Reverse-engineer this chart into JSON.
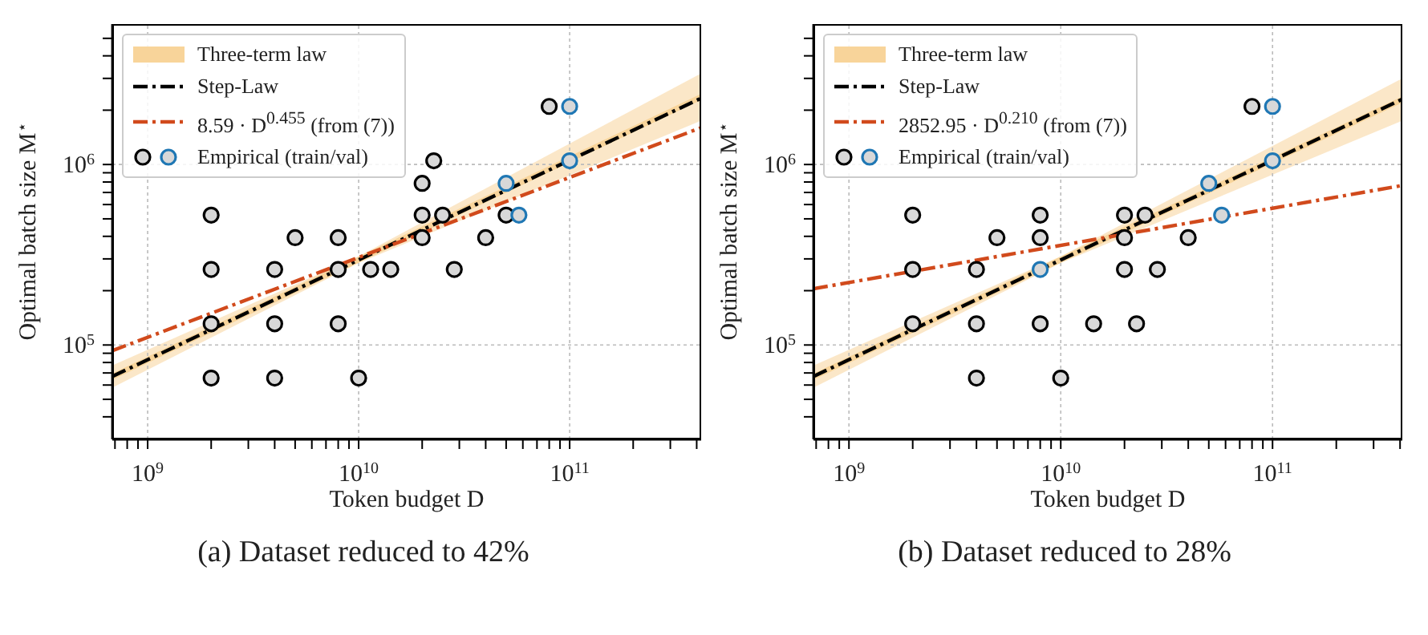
{
  "chart_data": [
    {
      "type": "scatter",
      "title": "(a) Dataset reduced to 42%",
      "xlabel": "Token budget D",
      "ylabel": "Optimal batch size M$^{⋆}$",
      "log": "xy",
      "grid": true,
      "legend": "top left",
      "xlim": [
        680000000.0,
        420000000000.0
      ],
      "ylim": [
        30000.0,
        6000000.0
      ],
      "xticks": [
        {
          "value": 700000000.0,
          "label": null
        },
        {
          "value": 800000000.0,
          "label": null
        },
        {
          "value": 900000000.0,
          "label": null
        },
        {
          "value": 1000000000.0,
          "label": "10$^{9}$"
        },
        {
          "value": 2000000000.0,
          "label": null
        },
        {
          "value": 3000000000.0,
          "label": null
        },
        {
          "value": 4000000000.0,
          "label": null
        },
        {
          "value": 5000000000.0,
          "label": null
        },
        {
          "value": 6000000000.0,
          "label": null
        },
        {
          "value": 7000000000.0,
          "label": null
        },
        {
          "value": 8000000000.0,
          "label": null
        },
        {
          "value": 9000000000.0,
          "label": null
        },
        {
          "value": 10000000000.0,
          "label": "10$^{10}$"
        },
        {
          "value": 20000000000.0,
          "label": null
        },
        {
          "value": 30000000000.0,
          "label": null
        },
        {
          "value": 40000000000.0,
          "label": null
        },
        {
          "value": 50000000000.0,
          "label": null
        },
        {
          "value": 60000000000.0,
          "label": null
        },
        {
          "value": 70000000000.0,
          "label": null
        },
        {
          "value": 80000000000.0,
          "label": null
        },
        {
          "value": 90000000000.0,
          "label": null
        },
        {
          "value": 100000000000.0,
          "label": "10$^{11}$"
        },
        {
          "value": 200000000000.0,
          "label": null
        },
        {
          "value": 300000000000.0,
          "label": null
        },
        {
          "value": 400000000000.0,
          "label": null
        }
      ],
      "yticks": [
        {
          "value": 40000.0,
          "label": null
        },
        {
          "value": 50000.0,
          "label": null
        },
        {
          "value": 60000.0,
          "label": null
        },
        {
          "value": 70000.0,
          "label": null
        },
        {
          "value": 80000.0,
          "label": null
        },
        {
          "value": 90000.0,
          "label": null
        },
        {
          "value": 100000.0,
          "label": "10$^{5}$"
        },
        {
          "value": 200000.0,
          "label": null
        },
        {
          "value": 300000.0,
          "label": null
        },
        {
          "value": 400000.0,
          "label": null
        },
        {
          "value": 500000.0,
          "label": null
        },
        {
          "value": 600000.0,
          "label": null
        },
        {
          "value": 700000.0,
          "label": null
        },
        {
          "value": 800000.0,
          "label": null
        },
        {
          "value": 900000.0,
          "label": null
        },
        {
          "value": 1000000.0,
          "label": "10$^{6}$"
        },
        {
          "value": 2000000.0,
          "label": null
        },
        {
          "value": 3000000.0,
          "label": null
        },
        {
          "value": 4000000.0,
          "label": null
        },
        {
          "value": 5000000.0,
          "label": null
        }
      ],
      "series": [
        {
          "name": "Three-term law",
          "type": "line",
          "color": "#f8d49a",
          "x": [
            680000000.0,
            10000000000.0,
            420000000000.0
          ],
          "values": [
            66800.0,
            297000.0,
            2370000.0
          ],
          "lower": [
            58000.0,
            285000.0,
            1750000.0
          ],
          "upper": [
            77000.0,
            310000.0,
            3200000.0
          ]
        },
        {
          "name": "Step-Law",
          "type": "line",
          "color": "#000000",
          "line_style": "dashed",
          "x": [
            680000000.0,
            10000000000.0,
            420000000000.0
          ],
          "values": [
            67000.0,
            296000.0,
            2330000.0
          ]
        },
        {
          "name": "8.59 · D$^{0.455}$ (from (7))",
          "type": "line",
          "color": "#d14a1c",
          "line_style": "dashed",
          "x": [
            680000000.0,
            420000000000.0
          ],
          "values": [
            93000.0,
            1600000.0
          ]
        },
        {
          "name": "Empirical (train/val)",
          "type": "scatter",
          "marker": "circle",
          "color": "#000000",
          "x": [
            2000000000.0,
            2000000000.0,
            2000000000.0,
            2000000000.0,
            4000000000.0,
            4000000000.0,
            4000000000.0,
            5000000000.0,
            8000000000.0,
            8000000000.0,
            8000000000.0,
            10000000000.0,
            11400000000.0,
            14200000000.0,
            20000000000.0,
            20000000000.0,
            20000000000.0,
            22700000000.0,
            25000000000.0,
            28400000000.0,
            40000000000.0,
            50000000000.0,
            80000000000.0
          ],
          "values": [
            524288,
            262144,
            131072,
            65536,
            262144,
            131072,
            65536,
            393216,
            393216,
            262144,
            131072,
            65536,
            262144,
            262144,
            786432,
            524288,
            393216,
            1048576,
            524288,
            262144,
            393216,
            524288,
            2097152
          ]
        },
        {
          "type": "scatter",
          "marker": "circle",
          "color": "#1f77b4",
          "x": [
            50000000000.0,
            57500000000.0,
            100000000000.0,
            100000000000.0
          ],
          "values": [
            786432,
            524288,
            2097152,
            1048576
          ]
        }
      ]
    },
    {
      "type": "scatter",
      "title": "(b) Dataset reduced to 28%",
      "xlabel": "Token budget D",
      "ylabel": "Optimal batch size M$^{⋆}$",
      "log": "xy",
      "grid": true,
      "legend": "top left",
      "xlim": [
        680000000.0,
        410000000000.0
      ],
      "ylim": [
        30000.0,
        6000000.0
      ],
      "xticks": [
        {
          "value": 700000000.0,
          "label": null
        },
        {
          "value": 800000000.0,
          "label": null
        },
        {
          "value": 900000000.0,
          "label": null
        },
        {
          "value": 1000000000.0,
          "label": "10$^{9}$"
        },
        {
          "value": 2000000000.0,
          "label": null
        },
        {
          "value": 3000000000.0,
          "label": null
        },
        {
          "value": 4000000000.0,
          "label": null
        },
        {
          "value": 5000000000.0,
          "label": null
        },
        {
          "value": 6000000000.0,
          "label": null
        },
        {
          "value": 7000000000.0,
          "label": null
        },
        {
          "value": 8000000000.0,
          "label": null
        },
        {
          "value": 9000000000.0,
          "label": null
        },
        {
          "value": 10000000000.0,
          "label": "10$^{10}$"
        },
        {
          "value": 20000000000.0,
          "label": null
        },
        {
          "value": 30000000000.0,
          "label": null
        },
        {
          "value": 40000000000.0,
          "label": null
        },
        {
          "value": 50000000000.0,
          "label": null
        },
        {
          "value": 60000000000.0,
          "label": null
        },
        {
          "value": 70000000000.0,
          "label": null
        },
        {
          "value": 80000000000.0,
          "label": null
        },
        {
          "value": 90000000000.0,
          "label": null
        },
        {
          "value": 100000000000.0,
          "label": "10$^{11}$"
        },
        {
          "value": 200000000000.0,
          "label": null
        },
        {
          "value": 300000000000.0,
          "label": null
        },
        {
          "value": 400000000000.0,
          "label": null
        }
      ],
      "yticks": [
        {
          "value": 40000.0,
          "label": null
        },
        {
          "value": 50000.0,
          "label": null
        },
        {
          "value": 60000.0,
          "label": null
        },
        {
          "value": 70000.0,
          "label": null
        },
        {
          "value": 80000.0,
          "label": null
        },
        {
          "value": 90000.0,
          "label": null
        },
        {
          "value": 100000.0,
          "label": "10$^{5}$"
        },
        {
          "value": 200000.0,
          "label": null
        },
        {
          "value": 300000.0,
          "label": null
        },
        {
          "value": 400000.0,
          "label": null
        },
        {
          "value": 500000.0,
          "label": null
        },
        {
          "value": 600000.0,
          "label": null
        },
        {
          "value": 700000.0,
          "label": null
        },
        {
          "value": 800000.0,
          "label": null
        },
        {
          "value": 900000.0,
          "label": null
        },
        {
          "value": 1000000.0,
          "label": "10$^{6}$"
        },
        {
          "value": 2000000.0,
          "label": null
        },
        {
          "value": 3000000.0,
          "label": null
        },
        {
          "value": 4000000.0,
          "label": null
        },
        {
          "value": 5000000.0,
          "label": null
        }
      ],
      "series": [
        {
          "name": "Three-term law",
          "type": "line",
          "color": "#f8d49a",
          "x": [
            680000000.0,
            10000000000.0,
            410000000000.0
          ],
          "values": [
            66800.0,
            297000.0,
            2290000.0
          ],
          "lower": [
            58000.0,
            285000.0,
            1750000.0
          ],
          "upper": [
            77000.0,
            310000.0,
            3000000.0
          ]
        },
        {
          "name": "Step-Law",
          "type": "line",
          "color": "#000000",
          "line_style": "dashed",
          "x": [
            680000000.0,
            10000000000.0,
            410000000000.0
          ],
          "values": [
            67000.0,
            296000.0,
            2300000.0
          ]
        },
        {
          "name": "2852.95 · D$^{0.210}$ (from (7))",
          "type": "line",
          "color": "#d14a1c",
          "line_style": "dashed",
          "x": [
            680000000.0,
            410000000000.0
          ],
          "values": [
            205000.0,
            765000.0
          ]
        },
        {
          "name": "Empirical (train/val)",
          "type": "scatter",
          "marker": "circle",
          "color": "#000000",
          "x": [
            2000000000.0,
            2000000000.0,
            2000000000.0,
            4000000000.0,
            4000000000.0,
            4000000000.0,
            5000000000.0,
            8000000000.0,
            8000000000.0,
            8000000000.0,
            10000000000.0,
            14300000000.0,
            20000000000.0,
            20000000000.0,
            20000000000.0,
            22800000000.0,
            25000000000.0,
            28600000000.0,
            40000000000.0,
            80000000000.0
          ],
          "values": [
            524288,
            262144,
            131072,
            262144,
            131072,
            65536,
            393216,
            524288,
            393216,
            131072,
            65536,
            131072,
            524288,
            393216,
            262144,
            131072,
            524288,
            262144,
            393216,
            2097152
          ]
        },
        {
          "type": "scatter",
          "marker": "circle",
          "color": "#1f77b4",
          "x": [
            8000000000.0,
            50000000000.0,
            57500000000.0,
            100000000000.0,
            100000000000.0
          ],
          "values": [
            262144,
            786432,
            524288,
            2097152,
            1048576
          ]
        }
      ]
    }
  ]
}
